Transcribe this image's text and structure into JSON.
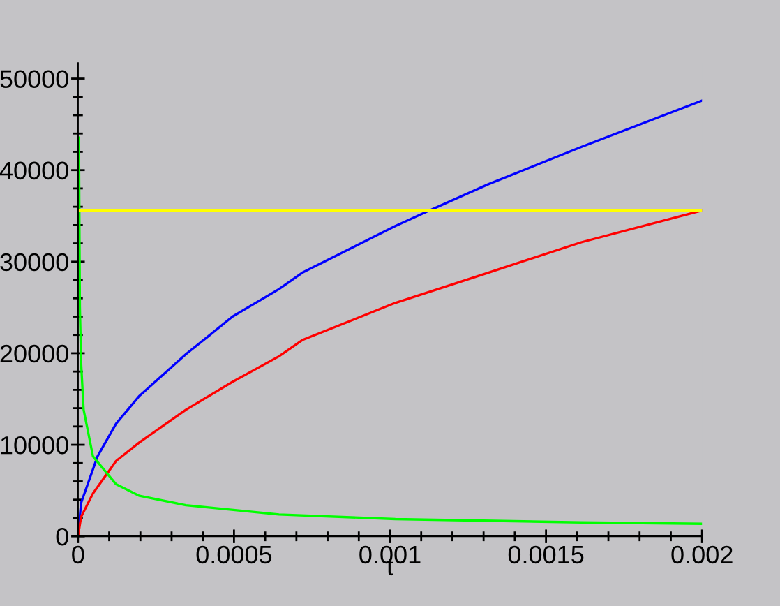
{
  "chart_data": {
    "type": "line",
    "xlabel": "t",
    "xlim": [
      0,
      0.002
    ],
    "ylim": [
      0,
      51700
    ],
    "xticks": [
      0,
      0.0005,
      0.001,
      0.0015,
      0.002
    ],
    "yticks": [
      0,
      10000,
      20000,
      30000,
      40000,
      50000
    ],
    "grid": false,
    "legend": false,
    "marker": "none",
    "line_style": "solid",
    "series": [
      {
        "color": "#0000ff",
        "x": [
          0,
          1e-05,
          6.26e-05,
          0.000122,
          0.000197,
          0.000346,
          0.000421,
          0.000495,
          0.000644,
          0.000719,
          0.001017,
          0.00112,
          0.001315,
          0.001613,
          0.002
        ],
        "values": [
          0,
          3660,
          8740,
          12300,
          15350,
          19900,
          21950,
          24000,
          27000,
          28800,
          33900,
          35500,
          38460,
          42530,
          47600
        ]
      },
      {
        "color": "#ff0000",
        "x": [
          0,
          1e-05,
          4.8e-05,
          0.000122,
          0.000197,
          0.000346,
          0.000495,
          0.000644,
          0.000719,
          0.001017,
          0.001315,
          0.001613,
          0.002
        ],
        "values": [
          0,
          2130,
          4680,
          8230,
          10260,
          13830,
          16870,
          19660,
          21440,
          25500,
          28800,
          32120,
          35600
        ]
      },
      {
        "color": "#00ff00",
        "x": [
          3e-06,
          6e-06,
          1e-05,
          1.8e-05,
          4.8e-05,
          0.000122,
          0.000197,
          0.000346,
          0.000644,
          0.001017,
          0.001613,
          0.002
        ],
        "values": [
          43550,
          25000,
          18900,
          13830,
          8740,
          5690,
          4420,
          3400,
          2390,
          1880,
          1520,
          1370
        ]
      }
    ],
    "ref_lines": [
      {
        "axis": "y",
        "value": 35600,
        "color": "#ffff00"
      }
    ]
  }
}
